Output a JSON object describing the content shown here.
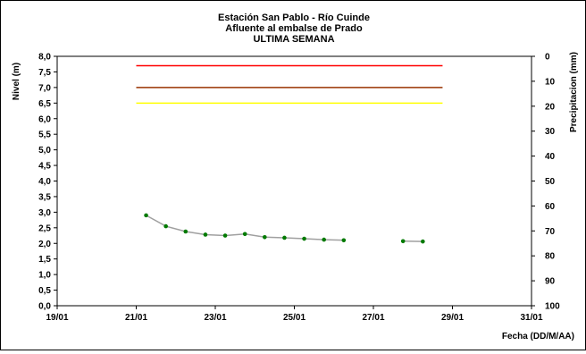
{
  "chart_data": {
    "type": "line",
    "title": [
      "Estación San Pablo - Río Cuinde",
      "Afluente al embalse de Prado",
      "ULTIMA SEMANA"
    ],
    "ylabel": "Nivel (m)",
    "y2label": "Precipitacion (mm)",
    "xlabel": "Fecha (DD/M/AA)",
    "ylim": [
      0,
      8
    ],
    "y2lim": [
      0,
      100
    ],
    "y2_inverted": true,
    "xlim": [
      0,
      12
    ],
    "x_ticks": [
      {
        "x": 0,
        "label": "19/01"
      },
      {
        "x": 2,
        "label": "21/01"
      },
      {
        "x": 4,
        "label": "23/01"
      },
      {
        "x": 6,
        "label": "25/01"
      },
      {
        "x": 8,
        "label": "27/01"
      },
      {
        "x": 10,
        "label": "29/01"
      },
      {
        "x": 12,
        "label": "31/01"
      }
    ],
    "y_ticks": [
      "0,0",
      "0,5",
      "1,0",
      "1,5",
      "2,0",
      "2,5",
      "3,0",
      "3,5",
      "4,0",
      "4,5",
      "5,0",
      "5,5",
      "6,0",
      "6,5",
      "7,0",
      "7,5",
      "8,0"
    ],
    "y2_ticks": [
      "0",
      "10",
      "20",
      "30",
      "40",
      "50",
      "60",
      "70",
      "80",
      "90",
      "100"
    ],
    "thresholds": [
      {
        "name": "red",
        "value": 7.7,
        "x_start": 2,
        "x_end": 9.75,
        "color": "#ff0000"
      },
      {
        "name": "brown",
        "value": 7.0,
        "x_start": 2,
        "x_end": 9.75,
        "color": "#993300"
      },
      {
        "name": "yellow",
        "value": 6.5,
        "x_start": 2,
        "x_end": 9.75,
        "color": "#ffff00"
      }
    ],
    "series": [
      {
        "values": [
          {
            "x": 2.25,
            "y": 2.9
          },
          {
            "x": 2.75,
            "y": 2.55
          },
          {
            "x": 3.25,
            "y": 2.38
          },
          {
            "x": 3.75,
            "y": 2.28
          },
          {
            "x": 4.25,
            "y": 2.25
          },
          {
            "x": 4.75,
            "y": 2.3
          },
          {
            "x": 5.25,
            "y": 2.2
          },
          {
            "x": 5.75,
            "y": 2.18
          },
          {
            "x": 6.25,
            "y": 2.15
          },
          {
            "x": 6.75,
            "y": 2.12
          },
          {
            "x": 7.25,
            "y": 2.1
          },
          null,
          {
            "x": 8.75,
            "y": 2.07
          },
          {
            "x": 9.25,
            "y": 2.06
          }
        ],
        "line_color": "#a0a0a0",
        "marker_color": "#007a00"
      }
    ],
    "grid": false,
    "legend": "none"
  }
}
